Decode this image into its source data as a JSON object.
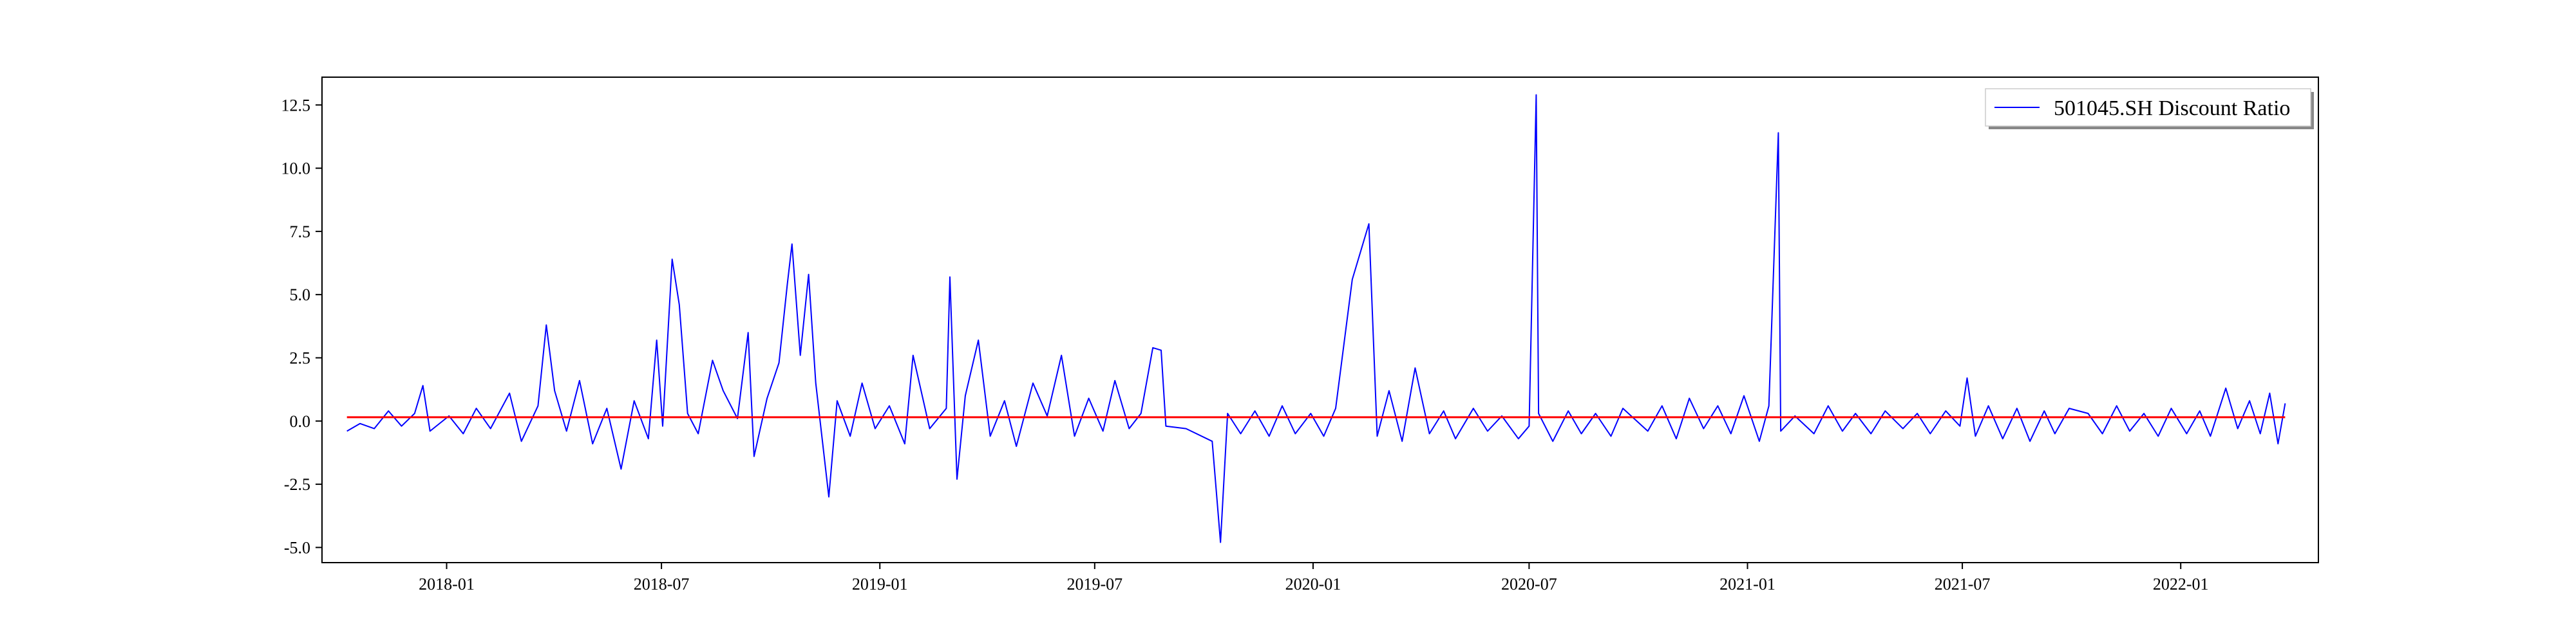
{
  "chart_data": {
    "type": "line",
    "title": "",
    "xlabel": "",
    "ylabel": "",
    "xlim": [
      "2017-09-18",
      "2022-04-27"
    ],
    "ylim": [
      -5.6,
      13.6
    ],
    "x_ticks": [
      "2018-01",
      "2018-07",
      "2019-01",
      "2019-07",
      "2020-01",
      "2020-07",
      "2021-01",
      "2021-07",
      "2022-01"
    ],
    "y_ticks": [
      "-5.0",
      "-2.5",
      "0.0",
      "2.5",
      "5.0",
      "7.5",
      "10.0",
      "12.5"
    ],
    "y_tick_values": [
      -5.0,
      -2.5,
      0.0,
      2.5,
      5.0,
      7.5,
      10.0,
      12.5
    ],
    "grid": false,
    "legend_position": "top-right",
    "series": [
      {
        "name": "501045.SH Discount Ratio",
        "color": "#0000ff",
        "points": [
          [
            "2017-10-09",
            -0.4
          ],
          [
            "2017-10-20",
            -0.1
          ],
          [
            "2017-11-01",
            -0.3
          ],
          [
            "2017-11-13",
            0.4
          ],
          [
            "2017-11-24",
            -0.2
          ],
          [
            "2017-12-05",
            0.3
          ],
          [
            "2017-12-12",
            1.4
          ],
          [
            "2017-12-18",
            -0.4
          ],
          [
            "2018-01-03",
            0.2
          ],
          [
            "2018-01-15",
            -0.5
          ],
          [
            "2018-01-26",
            0.5
          ],
          [
            "2018-02-07",
            -0.3
          ],
          [
            "2018-02-23",
            1.1
          ],
          [
            "2018-03-05",
            -0.8
          ],
          [
            "2018-03-19",
            0.6
          ],
          [
            "2018-03-26",
            3.8
          ],
          [
            "2018-04-02",
            1.2
          ],
          [
            "2018-04-12",
            -0.4
          ],
          [
            "2018-04-23",
            1.6
          ],
          [
            "2018-05-04",
            -0.9
          ],
          [
            "2018-05-16",
            0.5
          ],
          [
            "2018-05-28",
            -1.9
          ],
          [
            "2018-06-08",
            0.8
          ],
          [
            "2018-06-20",
            -0.7
          ],
          [
            "2018-06-27",
            3.2
          ],
          [
            "2018-07-02",
            -0.2
          ],
          [
            "2018-07-10",
            6.4
          ],
          [
            "2018-07-16",
            4.6
          ],
          [
            "2018-07-23",
            0.3
          ],
          [
            "2018-08-01",
            -0.5
          ],
          [
            "2018-08-13",
            2.4
          ],
          [
            "2018-08-22",
            1.2
          ],
          [
            "2018-09-03",
            0.1
          ],
          [
            "2018-09-12",
            3.5
          ],
          [
            "2018-09-17",
            -1.4
          ],
          [
            "2018-09-28",
            0.9
          ],
          [
            "2018-10-08",
            2.3
          ],
          [
            "2018-10-15",
            5.4
          ],
          [
            "2018-10-19",
            7.0
          ],
          [
            "2018-10-26",
            2.6
          ],
          [
            "2018-11-02",
            5.8
          ],
          [
            "2018-11-08",
            1.5
          ],
          [
            "2018-11-19",
            -3.0
          ],
          [
            "2018-11-26",
            0.8
          ],
          [
            "2018-12-07",
            -0.6
          ],
          [
            "2018-12-17",
            1.5
          ],
          [
            "2018-12-28",
            -0.3
          ],
          [
            "2019-01-09",
            0.6
          ],
          [
            "2019-01-22",
            -0.9
          ],
          [
            "2019-01-29",
            2.6
          ],
          [
            "2019-02-12",
            -0.3
          ],
          [
            "2019-02-26",
            0.5
          ],
          [
            "2019-03-01",
            5.7
          ],
          [
            "2019-03-07",
            -2.3
          ],
          [
            "2019-03-14",
            1.0
          ],
          [
            "2019-03-25",
            3.2
          ],
          [
            "2019-04-04",
            -0.6
          ],
          [
            "2019-04-16",
            0.8
          ],
          [
            "2019-04-26",
            -1.0
          ],
          [
            "2019-05-10",
            1.5
          ],
          [
            "2019-05-22",
            0.2
          ],
          [
            "2019-06-03",
            2.6
          ],
          [
            "2019-06-14",
            -0.6
          ],
          [
            "2019-06-26",
            0.9
          ],
          [
            "2019-07-08",
            -0.4
          ],
          [
            "2019-07-18",
            1.6
          ],
          [
            "2019-07-30",
            -0.3
          ],
          [
            "2019-08-09",
            0.3
          ],
          [
            "2019-08-19",
            2.9
          ],
          [
            "2019-08-26",
            2.8
          ],
          [
            "2019-08-30",
            -0.2
          ],
          [
            "2019-09-16",
            -0.3
          ],
          [
            "2019-10-08",
            -0.8
          ],
          [
            "2019-10-15",
            -4.8
          ],
          [
            "2019-10-21",
            0.3
          ],
          [
            "2019-11-01",
            -0.5
          ],
          [
            "2019-11-13",
            0.4
          ],
          [
            "2019-11-25",
            -0.6
          ],
          [
            "2019-12-06",
            0.6
          ],
          [
            "2019-12-17",
            -0.5
          ],
          [
            "2019-12-30",
            0.3
          ],
          [
            "2020-01-10",
            -0.6
          ],
          [
            "2020-01-20",
            0.5
          ],
          [
            "2020-02-03",
            5.6
          ],
          [
            "2020-02-17",
            7.8
          ],
          [
            "2020-02-24",
            -0.6
          ],
          [
            "2020-03-05",
            1.2
          ],
          [
            "2020-03-16",
            -0.8
          ],
          [
            "2020-03-27",
            2.1
          ],
          [
            "2020-04-08",
            -0.5
          ],
          [
            "2020-04-20",
            0.4
          ],
          [
            "2020-04-30",
            -0.7
          ],
          [
            "2020-05-15",
            0.5
          ],
          [
            "2020-05-27",
            -0.4
          ],
          [
            "2020-06-08",
            0.2
          ],
          [
            "2020-06-22",
            -0.7
          ],
          [
            "2020-07-01",
            -0.2
          ],
          [
            "2020-07-07",
            12.9
          ],
          [
            "2020-07-09",
            0.3
          ],
          [
            "2020-07-21",
            -0.8
          ],
          [
            "2020-08-03",
            0.4
          ],
          [
            "2020-08-14",
            -0.5
          ],
          [
            "2020-08-26",
            0.3
          ],
          [
            "2020-09-08",
            -0.6
          ],
          [
            "2020-09-18",
            0.5
          ],
          [
            "2020-10-09",
            -0.4
          ],
          [
            "2020-10-21",
            0.6
          ],
          [
            "2020-11-02",
            -0.7
          ],
          [
            "2020-11-13",
            0.9
          ],
          [
            "2020-11-25",
            -0.3
          ],
          [
            "2020-12-07",
            0.6
          ],
          [
            "2020-12-18",
            -0.5
          ],
          [
            "2020-12-29",
            1.0
          ],
          [
            "2021-01-11",
            -0.8
          ],
          [
            "2021-01-19",
            0.6
          ],
          [
            "2021-01-27",
            11.4
          ],
          [
            "2021-01-29",
            -0.4
          ],
          [
            "2021-02-10",
            0.2
          ],
          [
            "2021-02-26",
            -0.5
          ],
          [
            "2021-03-10",
            0.6
          ],
          [
            "2021-03-22",
            -0.4
          ],
          [
            "2021-04-02",
            0.3
          ],
          [
            "2021-04-15",
            -0.5
          ],
          [
            "2021-04-27",
            0.4
          ],
          [
            "2021-05-12",
            -0.3
          ],
          [
            "2021-05-24",
            0.3
          ],
          [
            "2021-06-04",
            -0.5
          ],
          [
            "2021-06-17",
            0.4
          ],
          [
            "2021-06-29",
            -0.2
          ],
          [
            "2021-07-05",
            1.7
          ],
          [
            "2021-07-12",
            -0.6
          ],
          [
            "2021-07-23",
            0.6
          ],
          [
            "2021-08-04",
            -0.7
          ],
          [
            "2021-08-16",
            0.5
          ],
          [
            "2021-08-27",
            -0.8
          ],
          [
            "2021-09-08",
            0.4
          ],
          [
            "2021-09-17",
            -0.5
          ],
          [
            "2021-09-29",
            0.5
          ],
          [
            "2021-10-15",
            0.3
          ],
          [
            "2021-10-27",
            -0.5
          ],
          [
            "2021-11-08",
            0.6
          ],
          [
            "2021-11-19",
            -0.4
          ],
          [
            "2021-12-01",
            0.3
          ],
          [
            "2021-12-13",
            -0.6
          ],
          [
            "2021-12-24",
            0.5
          ],
          [
            "2022-01-06",
            -0.5
          ],
          [
            "2022-01-17",
            0.4
          ],
          [
            "2022-01-26",
            -0.6
          ],
          [
            "2022-02-08",
            1.3
          ],
          [
            "2022-02-18",
            -0.3
          ],
          [
            "2022-02-28",
            0.8
          ],
          [
            "2022-03-09",
            -0.5
          ],
          [
            "2022-03-17",
            1.1
          ],
          [
            "2022-03-24",
            -0.9
          ],
          [
            "2022-03-30",
            0.7
          ]
        ]
      },
      {
        "name": "",
        "color": "#ff0000",
        "points": [
          [
            "2017-10-09",
            0.15
          ],
          [
            "2022-03-30",
            0.15
          ]
        ]
      }
    ]
  }
}
